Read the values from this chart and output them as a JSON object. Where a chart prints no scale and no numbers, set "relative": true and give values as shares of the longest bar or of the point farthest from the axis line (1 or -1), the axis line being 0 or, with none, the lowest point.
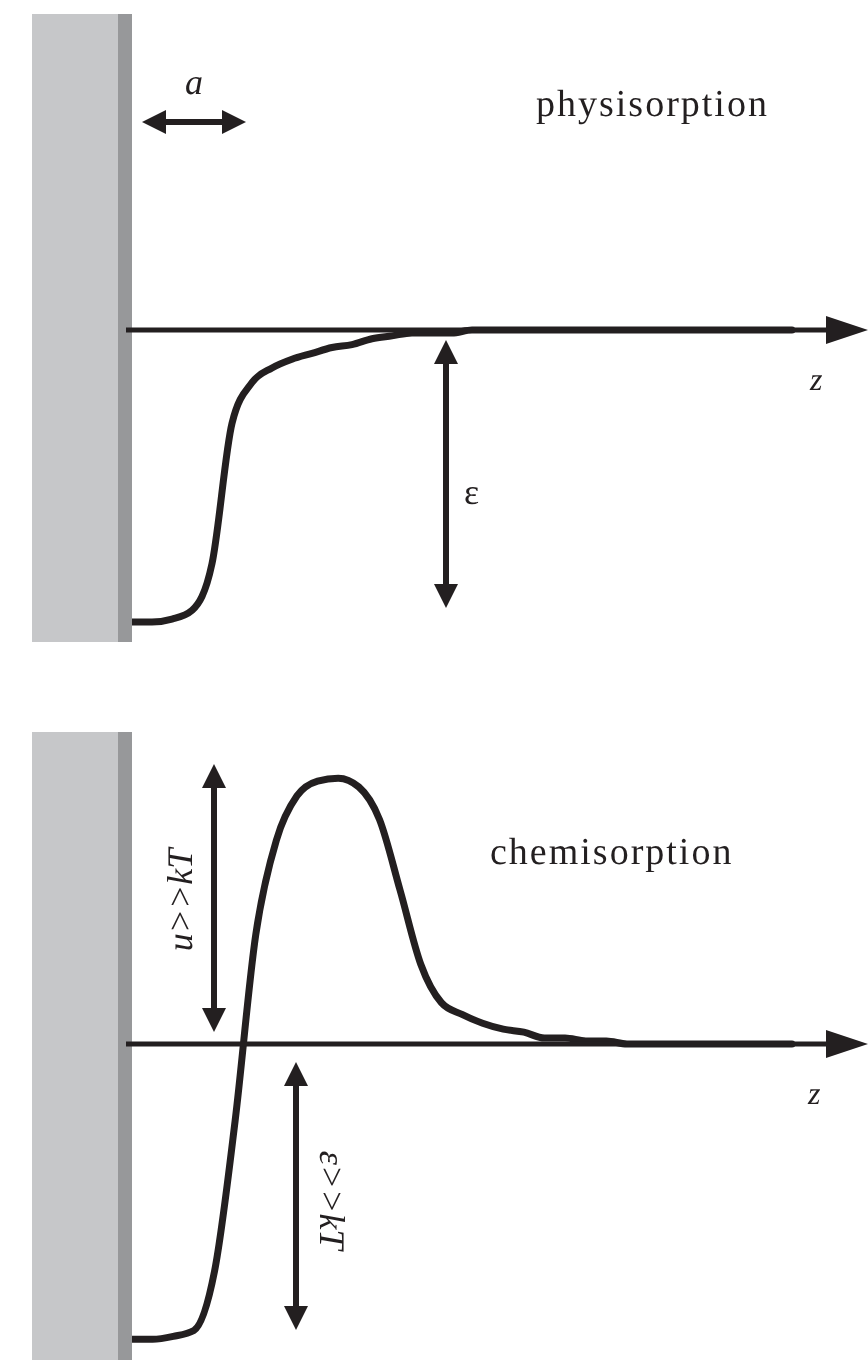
{
  "chart_data": [
    {
      "type": "line",
      "relative": true,
      "title": "physisorption",
      "xlabel": "z",
      "annotations": [
        "a",
        "ε"
      ],
      "categories": [
        null,
        null,
        null,
        null,
        null,
        null,
        null,
        null,
        null,
        null,
        null,
        null,
        null,
        null,
        null,
        null,
        null,
        null,
        null,
        null,
        null,
        null,
        null,
        null,
        null,
        null,
        null,
        null,
        null,
        null,
        null,
        null,
        null,
        null
      ],
      "series": [
        {
          "color": "#231f20",
          "values": [
            -1,
            -1,
            -0.99,
            -0.96,
            -0.8,
            -0.32,
            -0.18,
            -0.13,
            -0.1,
            -0.08,
            -0.06,
            -0.05,
            -0.03,
            -0.02,
            -0.01,
            -0.01,
            -0.01,
            0,
            0,
            0,
            0,
            0,
            0,
            0,
            0,
            0,
            0,
            0,
            0,
            0,
            0,
            0,
            0,
            0
          ]
        }
      ]
    },
    {
      "type": "line",
      "relative": true,
      "title": "chemisorption",
      "xlabel": "z",
      "annotations": [
        "u>>kT",
        "ε>>kT"
      ],
      "categories": [
        null,
        null,
        null,
        null,
        null,
        null,
        null,
        null,
        null,
        null,
        null,
        null,
        null,
        null,
        null,
        null,
        null,
        null,
        null,
        null,
        null,
        null,
        null,
        null,
        null,
        null,
        null,
        null,
        null,
        null,
        null,
        null,
        null
      ],
      "series": [
        {
          "color": "#231f20",
          "values": [
            -1,
            -1,
            -0.99,
            -0.97,
            -0.77,
            -0.26,
            0.37,
            0.69,
            0.84,
            0.89,
            0.9,
            0.87,
            0.76,
            0.52,
            0.27,
            0.14,
            0.1,
            0.07,
            0.05,
            0.04,
            0.02,
            0.02,
            0.01,
            0.01,
            0,
            0,
            0,
            0,
            0,
            0,
            0,
            0,
            0
          ]
        }
      ]
    }
  ]
}
